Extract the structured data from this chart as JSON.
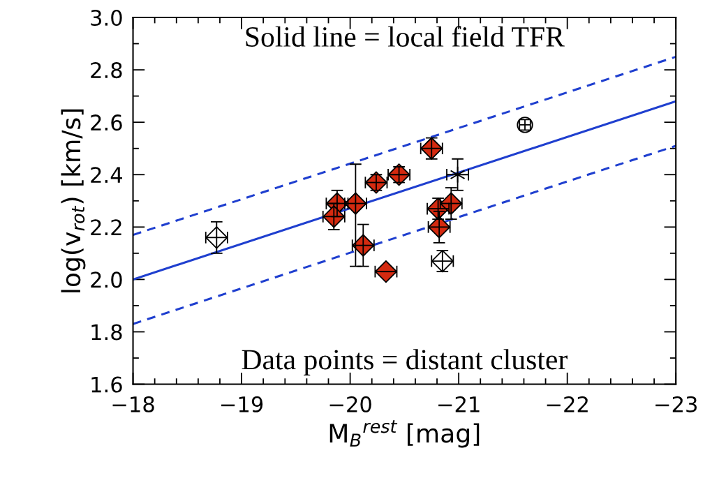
{
  "chart_data": {
    "type": "scatter",
    "xlabel": "M$_{B}$$^{rest}$ [mag]",
    "ylabel": "log(v$_{rot}$) [km/s]",
    "annotations": [
      "Solid line = local field TFR",
      "Data points = distant cluster"
    ],
    "xlim": [
      -18,
      -23
    ],
    "ylim": [
      1.6,
      3.0
    ],
    "xticks": [
      {
        "value": -18,
        "label": "−18"
      },
      {
        "value": -19,
        "label": "−19"
      },
      {
        "value": -20,
        "label": "−20"
      },
      {
        "value": -21,
        "label": "−21"
      },
      {
        "value": -22,
        "label": "−22"
      },
      {
        "value": -23,
        "label": "−23"
      }
    ],
    "yticks": [
      1.6,
      1.8,
      {
        "value": 2,
        "label": "2.0"
      },
      2.2,
      2.4,
      2.6,
      2.8,
      {
        "value": 3,
        "label": "3.0"
      }
    ],
    "grid": false,
    "series": [
      {
        "type": "line",
        "color": "#1f3fcf",
        "line_style": "solid",
        "marker": "none",
        "x": [
          -18,
          -23
        ],
        "values": [
          2.0,
          2.68
        ]
      },
      {
        "type": "line",
        "color": "#1f3fcf",
        "line_style": "dashed",
        "marker": "none",
        "x": [
          -18,
          -23
        ],
        "values": [
          2.17,
          2.85
        ]
      },
      {
        "type": "line",
        "color": "#1f3fcf",
        "line_style": "dashed",
        "marker": "none",
        "x": [
          -18,
          -23
        ],
        "values": [
          1.83,
          2.51
        ]
      },
      {
        "color": "#d42a10",
        "marker": "diamond",
        "x": [
          -19.88,
          -19.85,
          -20.05,
          -20.12,
          -20.33,
          -20.24,
          -20.45,
          -20.75,
          -20.81,
          -20.93,
          -20.82
        ],
        "values": [
          2.29,
          2.24,
          2.29,
          2.13,
          2.03,
          2.37,
          2.4,
          2.5,
          2.27,
          2.29,
          2.2
        ],
        "errors": [
          0.05,
          0.05,
          [
            2.05,
            2.44
          ],
          0.08,
          null,
          0.03,
          0.03,
          0.04,
          0.04,
          0.06,
          0.06
        ],
        "xerrors": [
          0.1,
          0.1,
          0.1,
          0.1,
          0.1,
          0.1,
          0.1,
          0.1,
          0.1,
          0.1,
          0.1
        ]
      },
      {
        "color": "#ffffff",
        "marker": "diamond",
        "x": [
          -18.77,
          -20.85
        ],
        "values": [
          2.16,
          2.07
        ],
        "errors": [
          0.06,
          0.04
        ],
        "xerrors": [
          0.1,
          0.1
        ]
      },
      {
        "color": "#000000",
        "marker": "cross",
        "x": [
          -20.99
        ],
        "values": [
          2.4
        ],
        "errors": [
          0.06
        ],
        "xerrors": [
          0.1
        ]
      },
      {
        "color": "#ffffff",
        "marker": "circle",
        "x": [
          -21.61
        ],
        "values": [
          2.59
        ],
        "errors": [
          0.02
        ],
        "xerrors": [
          0.05
        ]
      }
    ]
  }
}
